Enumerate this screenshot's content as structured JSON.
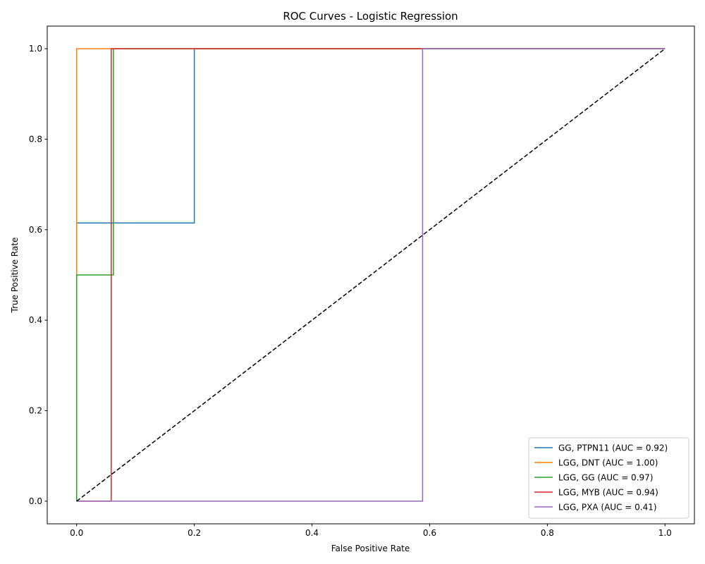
{
  "chart_data": {
    "type": "line",
    "title": "ROC Curves - Logistic Regression",
    "xlabel": "False Positive Rate",
    "ylabel": "True Positive Rate",
    "xlim": [
      -0.05,
      1.05
    ],
    "ylim": [
      -0.05,
      1.05
    ],
    "xticks": [
      0.0,
      0.2,
      0.4,
      0.6,
      0.8,
      1.0
    ],
    "yticks": [
      0.0,
      0.2,
      0.4,
      0.6,
      0.8,
      1.0
    ],
    "xtick_labels": [
      "0.0",
      "0.2",
      "0.4",
      "0.6",
      "0.8",
      "1.0"
    ],
    "ytick_labels": [
      "0.0",
      "0.2",
      "0.4",
      "0.6",
      "0.8",
      "1.0"
    ],
    "grid": false,
    "legend_position": "lower-right",
    "series": [
      {
        "name": "GG, PTPN11 (AUC = 0.92)",
        "color": "#1f77b4",
        "x": [
          0.0,
          0.0,
          0.2,
          0.2,
          1.0
        ],
        "y": [
          0.0,
          0.615,
          0.615,
          1.0,
          1.0
        ]
      },
      {
        "name": "LGG, DNT (AUC = 1.00)",
        "color": "#ff7f0e",
        "x": [
          0.0,
          0.0,
          0.0,
          1.0
        ],
        "y": [
          0.0,
          0.5,
          1.0,
          1.0
        ]
      },
      {
        "name": "LGG, GG (AUC = 0.97)",
        "color": "#2ca02c",
        "x": [
          0.0,
          0.0,
          0.0625,
          0.0625,
          1.0
        ],
        "y": [
          0.0,
          0.5,
          0.5,
          1.0,
          1.0
        ]
      },
      {
        "name": "LGG, MYB (AUC = 0.94)",
        "color": "#d62728",
        "x": [
          0.0,
          0.0588,
          0.0588,
          1.0
        ],
        "y": [
          0.0,
          0.0,
          1.0,
          1.0
        ]
      },
      {
        "name": "LGG, PXA (AUC = 0.41)",
        "color": "#9467bd",
        "x": [
          0.0,
          0.588,
          0.588,
          1.0
        ],
        "y": [
          0.0,
          0.0,
          1.0,
          1.0
        ]
      }
    ],
    "reference_line": {
      "color": "#000000",
      "style": "dashed",
      "x": [
        0.0,
        1.0
      ],
      "y": [
        0.0,
        1.0
      ]
    }
  }
}
